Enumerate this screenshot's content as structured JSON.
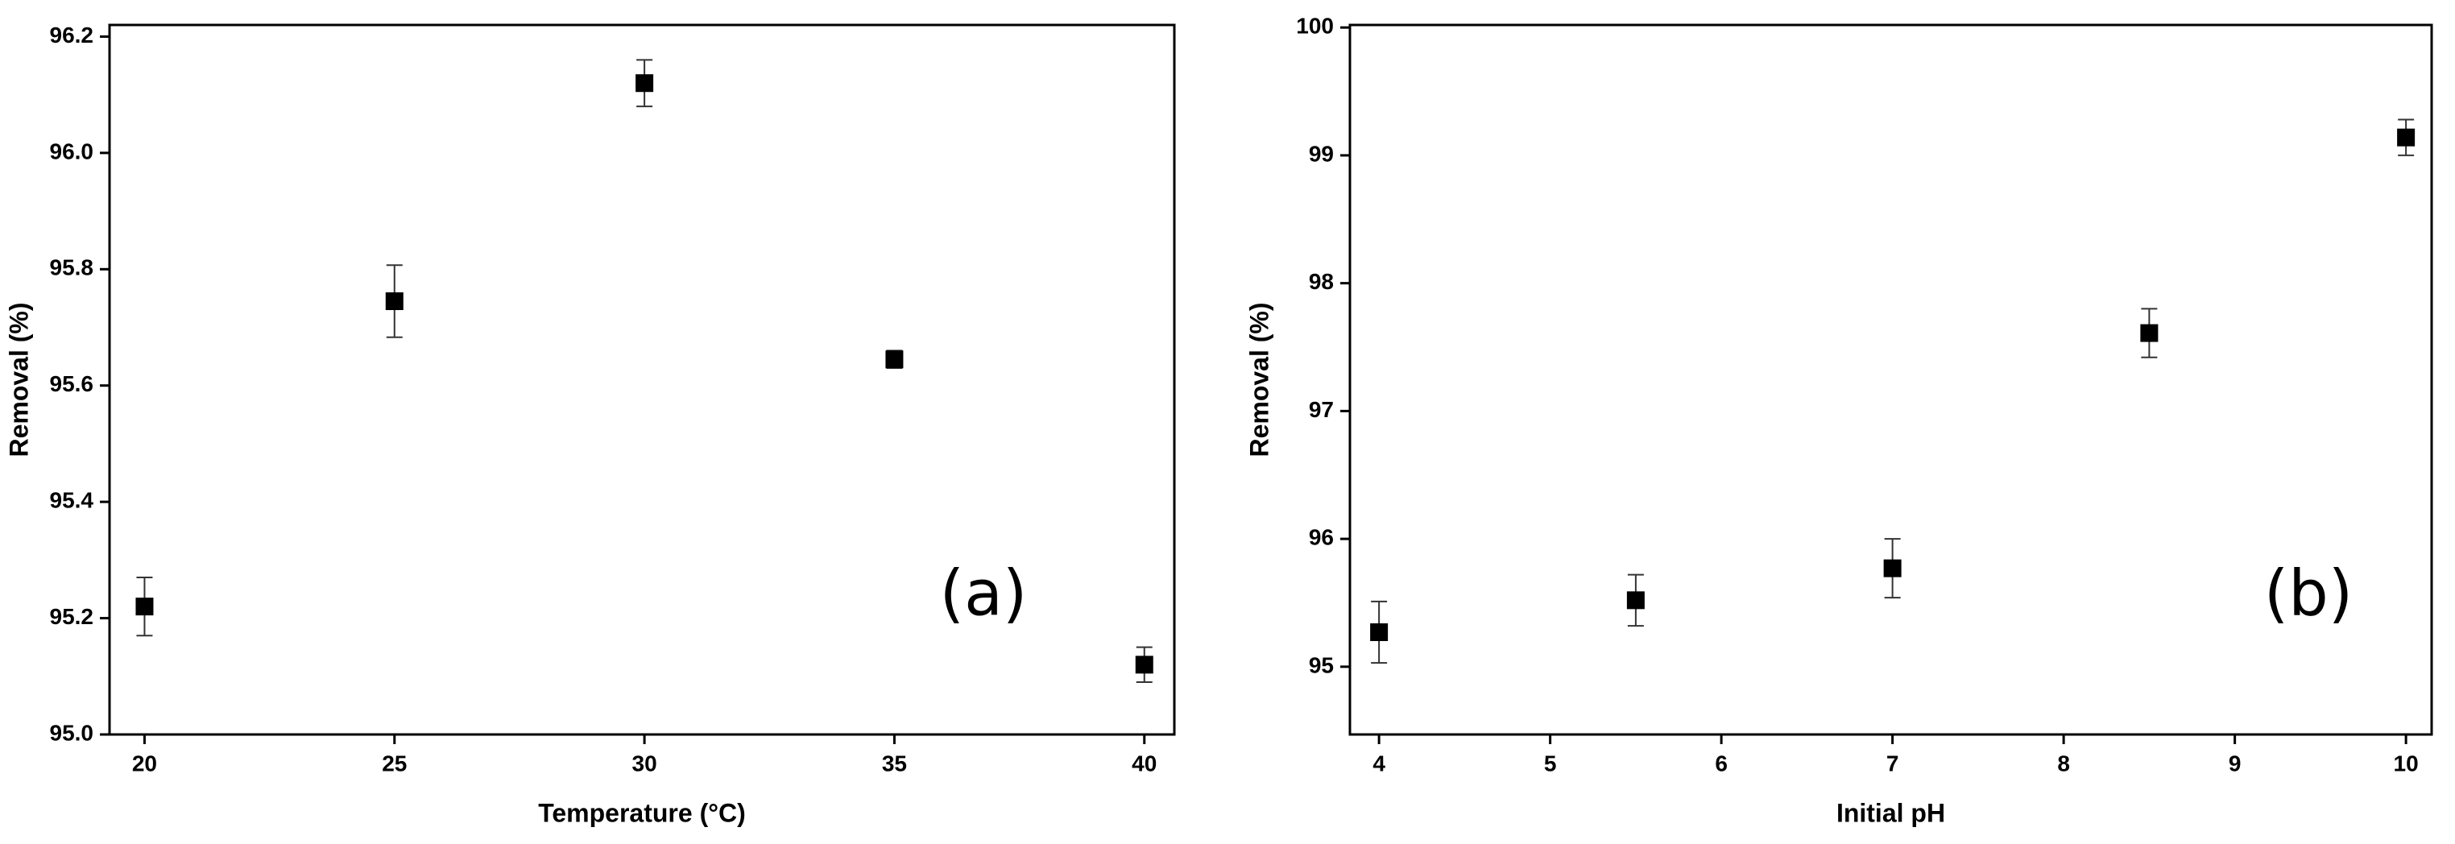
{
  "chart_data": [
    {
      "type": "scatter",
      "xlabel": "Temperature (°C)",
      "ylabel": "Removal (%)",
      "annotation": "(a)",
      "x": [
        20,
        25,
        30,
        35,
        40
      ],
      "values": [
        95.22,
        95.745,
        96.12,
        95.645,
        95.12
      ],
      "errors": [
        0.05,
        0.062,
        0.04,
        0.015,
        0.03
      ],
      "color": "#000000",
      "grid": false,
      "xlim": [
        19.3,
        40.6
      ],
      "xticks": [
        20,
        25,
        30,
        35,
        40
      ],
      "ylim": [
        95.0,
        96.22
      ],
      "yticks": [
        {
          "value": 95.0,
          "label": "95.0"
        },
        95.2,
        95.4,
        95.6,
        95.8,
        {
          "value": 96.0,
          "label": "96.0"
        },
        96.2
      ]
    },
    {
      "type": "scatter",
      "xlabel": "Initial pH",
      "ylabel": "Removal (%)",
      "annotation": "(b)",
      "x": [
        4,
        5.5,
        7,
        8.5,
        10
      ],
      "values": [
        95.27,
        95.52,
        95.77,
        97.61,
        99.14
      ],
      "errors": [
        0.24,
        0.2,
        0.23,
        0.19,
        0.14
      ],
      "color": "#000000",
      "grid": false,
      "xlim": [
        3.83,
        10.15
      ],
      "xticks": [
        4,
        5,
        6,
        7,
        8,
        9,
        10
      ],
      "ylim": [
        94.47,
        100.02
      ],
      "yticks": [
        95,
        96,
        97,
        98,
        99,
        100
      ]
    }
  ]
}
